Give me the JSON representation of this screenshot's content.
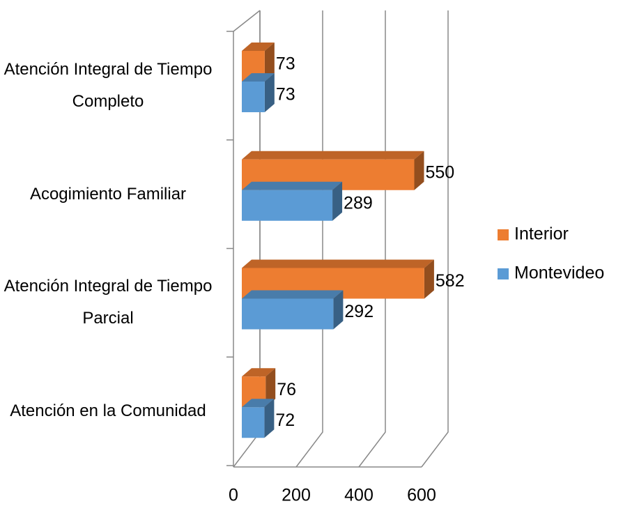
{
  "chart_data": {
    "type": "bar3d_horizontal",
    "categories": [
      "Atención en la Comunidad",
      "Atención Integral de Tiempo Parcial",
      "Acogimiento Familiar",
      "Atención Integral de Tiempo Completo"
    ],
    "series": [
      {
        "name": "Interior",
        "color": "#ed7d31",
        "values": [
          76,
          582,
          550,
          73
        ]
      },
      {
        "name": "Montevideo",
        "color": "#5b9bd5",
        "values": [
          72,
          292,
          289,
          73
        ]
      }
    ],
    "xlim": [
      0,
      600
    ],
    "xticks": [
      0,
      200,
      400,
      600
    ],
    "grid": true,
    "legend": "right"
  }
}
